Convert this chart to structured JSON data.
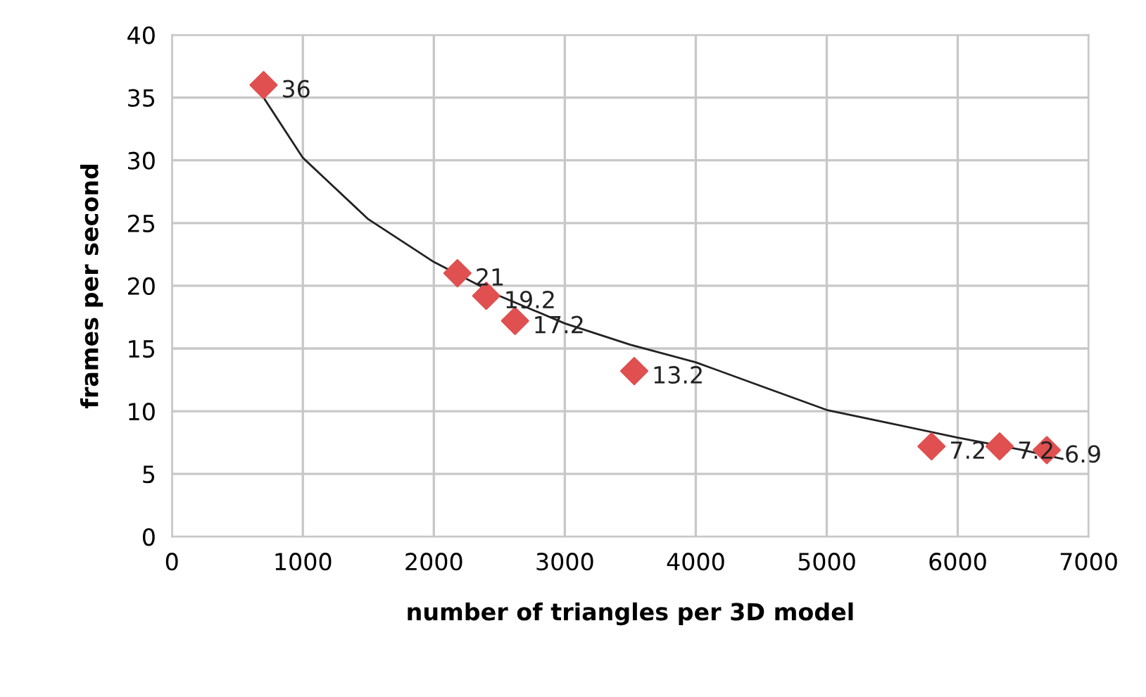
{
  "chart_data": {
    "type": "scatter",
    "xlabel": "number of triangles per 3D model",
    "ylabel": "frames per second",
    "xlim": [
      0,
      7000
    ],
    "xticks": [
      0,
      1000,
      2000,
      3000,
      4000,
      5000,
      6000,
      7000
    ],
    "ylim": [
      0,
      40
    ],
    "yticks": [
      0,
      5,
      10,
      15,
      20,
      25,
      30,
      35,
      40
    ],
    "grid": true,
    "marker": "diamond",
    "series": [
      {
        "color": "#e05050",
        "x": [
          700,
          2180,
          2400,
          2620,
          3530,
          5800,
          6320,
          6680
        ],
        "values": [
          36,
          21,
          19.2,
          17.2,
          13.2,
          7.2,
          7.2,
          6.9
        ],
        "value_labels": [
          "36",
          "21",
          "19.2",
          "17.2",
          "13.2",
          "7.2",
          "7.2",
          "6.9"
        ]
      },
      {
        "type": "line",
        "color": "#222222",
        "marker": "none",
        "x": [
          700,
          1000,
          1500,
          2000,
          2500,
          3000,
          3500,
          4000,
          4500,
          5000,
          5500,
          6000,
          6500,
          6800
        ],
        "values": [
          35,
          30.2,
          25.3,
          21.9,
          19.2,
          17,
          15.3,
          13.9,
          12,
          10.1,
          9,
          7.9,
          6.9,
          6.2
        ]
      }
    ]
  }
}
